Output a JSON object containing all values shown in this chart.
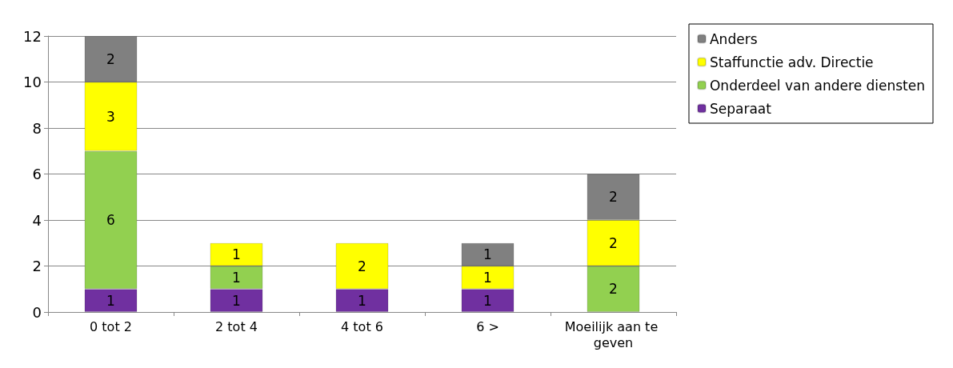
{
  "chart_data": {
    "type": "bar",
    "stacked": true,
    "categories": [
      "0 tot 2",
      "2 tot 4",
      "4 tot 6",
      "6 >",
      "Moeilijk aan te geven"
    ],
    "series": [
      {
        "name": "Separaat",
        "color": "#7030a0",
        "values": [
          1,
          1,
          1,
          1,
          null
        ]
      },
      {
        "name": "Onderdeel van andere diensten",
        "color": "#92d050",
        "values": [
          6,
          1,
          null,
          null,
          2
        ]
      },
      {
        "name": "Staffunctie adv. Directie",
        "color": "#ffff00",
        "values": [
          3,
          1,
          2,
          1,
          2
        ]
      },
      {
        "name": "Anders",
        "color": "#808080",
        "values": [
          2,
          null,
          null,
          1,
          2
        ]
      }
    ],
    "ylim": [
      0,
      12
    ],
    "yticks": [
      0,
      2,
      4,
      6,
      8,
      10,
      12
    ],
    "grid": "y",
    "legend": "top right",
    "data_labels": true
  }
}
